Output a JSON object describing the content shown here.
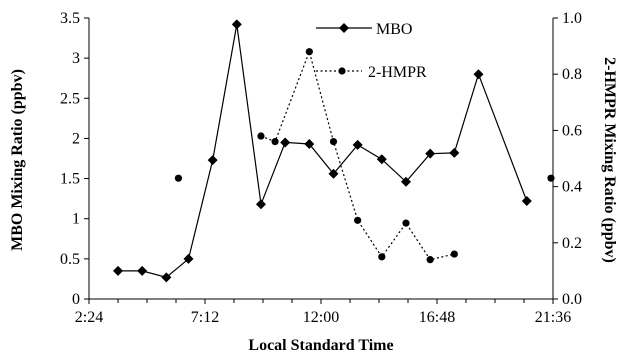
{
  "chart_data": {
    "type": "line",
    "xlabel": "Local Standard Time",
    "ylabel": "MBO Mixing Ratio (ppbv)",
    "y2label": "2-HMPR Mixing Ratio (ppbv)",
    "x_ticks": [
      "2:24",
      "7:12",
      "12:00",
      "16:48",
      "21:36"
    ],
    "xlim_hours": [
      2.4,
      21.6
    ],
    "ylim": [
      0,
      3.5
    ],
    "y_ticks": [
      "0",
      "0.5",
      "1",
      "1.5",
      "2",
      "2.5",
      "3",
      "3.5"
    ],
    "y2lim": [
      0,
      1.0
    ],
    "y2_ticks": [
      "0.0",
      "0.2",
      "0.4",
      "0.6",
      "0.8",
      "1.0"
    ],
    "legend_position": "top-center",
    "grid": false,
    "series": [
      {
        "name": "MBO",
        "axis": "left",
        "marker": "diamond",
        "line": "solid",
        "color": "#000000",
        "points": [
          {
            "x": "3:36",
            "y": 0.35
          },
          {
            "x": "4:36",
            "y": 0.35
          },
          {
            "x": "5:36",
            "y": 0.27
          },
          {
            "x": "6:31",
            "y": 0.5
          },
          {
            "x": "7:31",
            "y": 1.73
          },
          {
            "x": "8:31",
            "y": 3.42
          },
          {
            "x": "9:31",
            "y": 1.18
          },
          {
            "x": "10:31",
            "y": 1.95
          },
          {
            "x": "11:31",
            "y": 1.93
          },
          {
            "x": "12:31",
            "y": 1.56
          },
          {
            "x": "13:31",
            "y": 1.92
          },
          {
            "x": "14:31",
            "y": 1.74
          },
          {
            "x": "15:31",
            "y": 1.46
          },
          {
            "x": "16:31",
            "y": 1.81
          },
          {
            "x": "17:31",
            "y": 1.82
          },
          {
            "x": "18:31",
            "y": 2.8
          },
          {
            "x": "20:31",
            "y": 1.22
          }
        ]
      },
      {
        "name": "2-HMPR",
        "axis": "right",
        "marker": "circle",
        "line": "dotted",
        "color": "#000000",
        "isolated_points": [
          {
            "x": "6:06",
            "y": 0.43
          },
          {
            "x": "21:31",
            "y": 0.43
          }
        ],
        "points": [
          {
            "x": "9:31",
            "y": 0.58
          },
          {
            "x": "10:06",
            "y": 0.56
          },
          {
            "x": "11:31",
            "y": 0.88
          },
          {
            "x": "12:31",
            "y": 0.56
          },
          {
            "x": "13:31",
            "y": 0.28
          },
          {
            "x": "14:31",
            "y": 0.15
          },
          {
            "x": "15:31",
            "y": 0.27
          },
          {
            "x": "16:31",
            "y": 0.14
          },
          {
            "x": "17:31",
            "y": 0.16
          }
        ]
      }
    ]
  }
}
